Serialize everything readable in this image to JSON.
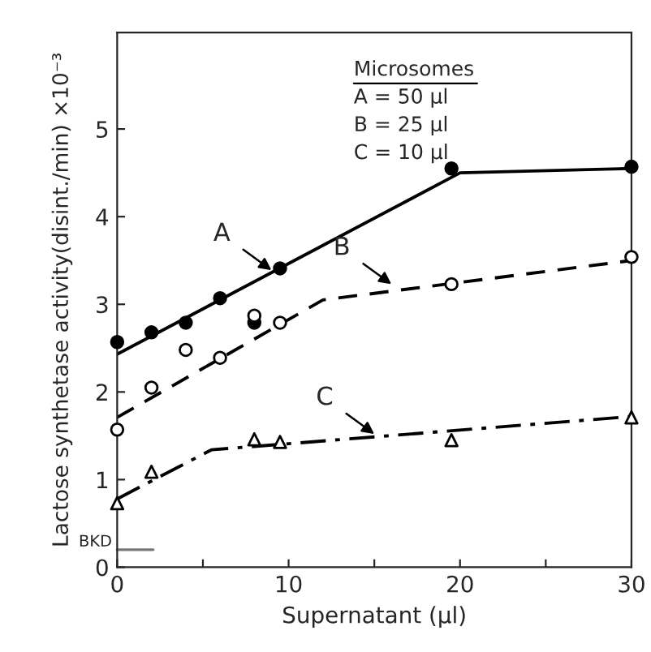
{
  "chart_data": {
    "type": "scatter",
    "xlabel": "Supernatant (µl)",
    "ylabel": "Lactose synthetase activity(disint./min) ×10⁻³",
    "xlim": [
      0,
      30
    ],
    "ylim": [
      0,
      6.1
    ],
    "xticks": [
      0,
      {
        "value": 5,
        "label": null
      },
      10,
      {
        "value": 15,
        "label": null
      },
      20,
      {
        "value": 25,
        "label": null
      },
      30
    ],
    "yticks": [
      0,
      1,
      2,
      3,
      4,
      5
    ],
    "grid": false,
    "legend": false,
    "series": [
      {
        "marker": "circle",
        "color": "#000000",
        "x": [
          0,
          2,
          4,
          6,
          8,
          9.5,
          19.5,
          30
        ],
        "values": [
          2.57,
          2.68,
          2.79,
          3.07,
          2.79,
          3.41,
          4.55,
          4.57
        ]
      },
      {
        "marker": "circle",
        "color": "#ffffff",
        "x": [
          0,
          2,
          4,
          6,
          8,
          9.5,
          19.5,
          30
        ],
        "values": [
          1.57,
          2.05,
          2.48,
          2.39,
          2.87,
          2.79,
          3.23,
          3.54
        ]
      },
      {
        "marker": "triangle",
        "color": "#ffffff",
        "x": [
          0,
          2,
          8,
          9.5,
          19.5,
          30
        ],
        "values": [
          0.73,
          1.09,
          1.46,
          1.43,
          1.45,
          1.71
        ]
      },
      {
        "type": "line",
        "line_style": "solid",
        "color": "#000000",
        "x": [
          0,
          20,
          30
        ],
        "values": [
          2.43,
          4.5,
          4.55
        ]
      },
      {
        "type": "line",
        "line_style": "dashed",
        "color": "#000000",
        "x": [
          0,
          12,
          30
        ],
        "values": [
          1.71,
          3.05,
          3.5
        ]
      },
      {
        "type": "line",
        "line_style": "dashdot",
        "color": "#000000",
        "x": [
          0,
          5.5,
          30
        ],
        "values": [
          0.78,
          1.34,
          1.72
        ]
      }
    ],
    "ref_lines": [
      {
        "axis": "y",
        "value": 0.2,
        "label": "BKD",
        "color": "#777777"
      }
    ],
    "annotations": [
      {
        "text": "A",
        "x": 9,
        "y": 3.39
      },
      {
        "text": "B",
        "x": 16,
        "y": 3.23
      },
      {
        "text": "C",
        "x": 15,
        "y": 1.52
      },
      "Microsomes",
      "A = 50 µl",
      "B = 25 µl",
      "C = 10 µl"
    ]
  }
}
